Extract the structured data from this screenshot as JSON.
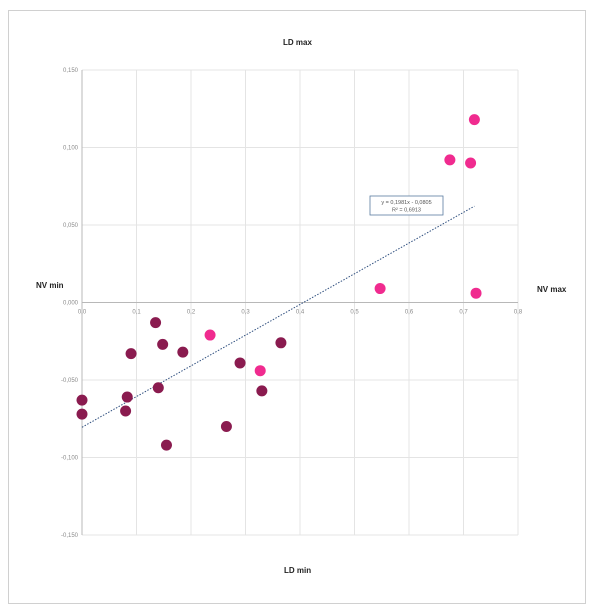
{
  "chart_data": {
    "type": "scatter",
    "title": "",
    "quadrant_labels": {
      "top": "LD max",
      "bottom": "LD min",
      "left": "NV min",
      "right": "NV max"
    },
    "xlim": [
      0,
      0.8
    ],
    "ylim": [
      -0.15,
      0.15
    ],
    "x_ticks": [
      {
        "v": 0,
        "label": "0,0"
      },
      {
        "v": 0.1,
        "label": "0,1"
      },
      {
        "v": 0.2,
        "label": "0,2"
      },
      {
        "v": 0.3,
        "label": "0,3"
      },
      {
        "v": 0.4,
        "label": "0,4"
      },
      {
        "v": 0.5,
        "label": "0,5"
      },
      {
        "v": 0.6,
        "label": "0,6"
      },
      {
        "v": 0.7,
        "label": "0,7"
      },
      {
        "v": 0.8,
        "label": "0,8"
      }
    ],
    "y_ticks": [
      {
        "v": 0.15,
        "label": "0,150"
      },
      {
        "v": 0.1,
        "label": "0,100"
      },
      {
        "v": 0.05,
        "label": "0,050"
      },
      {
        "v": 0,
        "label": "0,000"
      },
      {
        "v": -0.05,
        "label": "-0,050"
      },
      {
        "v": -0.1,
        "label": "-0,100"
      },
      {
        "v": -0.15,
        "label": "-0,150"
      }
    ],
    "grid": true,
    "series": [
      {
        "color": "#8a1b4f",
        "points": [
          [
            0.0,
            -0.063
          ],
          [
            0.0,
            -0.072
          ],
          [
            0.08,
            -0.07
          ],
          [
            0.083,
            -0.061
          ],
          [
            0.09,
            -0.033
          ],
          [
            0.135,
            -0.013
          ],
          [
            0.14,
            -0.055
          ],
          [
            0.148,
            -0.027
          ],
          [
            0.155,
            -0.092
          ],
          [
            0.185,
            -0.032
          ],
          [
            0.265,
            -0.08
          ],
          [
            0.29,
            -0.039
          ],
          [
            0.33,
            -0.057
          ],
          [
            0.365,
            -0.026
          ]
        ]
      },
      {
        "color": "#f02b8f",
        "points": [
          [
            0.235,
            -0.021
          ],
          [
            0.327,
            -0.044
          ],
          [
            0.547,
            0.009
          ],
          [
            0.675,
            0.092
          ],
          [
            0.713,
            0.09
          ],
          [
            0.72,
            0.118
          ],
          [
            0.723,
            0.006
          ]
        ]
      }
    ],
    "trendline": {
      "slope": 0.1981,
      "intercept": -0.0805,
      "x_range": [
        0,
        0.72
      ],
      "style": "dotted",
      "color": "#2f4f7f",
      "label_lines": [
        "y = 0,1981x - 0,0805",
        "R² = 0,6913"
      ]
    }
  }
}
